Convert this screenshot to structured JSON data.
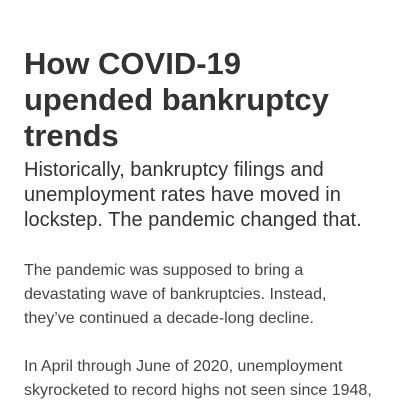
{
  "article": {
    "headline": "How COVID-19 upended bankruptcy trends",
    "dek": "Historically, bankruptcy filings and unemployment rates have moved in lockstep. The pandemic changed that.",
    "paragraphs": [
      "The pandemic was supposed to bring a devastating wave of bankruptcies. Instead, they’ve continued a decade-long decline.",
      "In April through June of 2020, unemployment skyrocketed to record highs not seen since 1948,"
    ]
  }
}
